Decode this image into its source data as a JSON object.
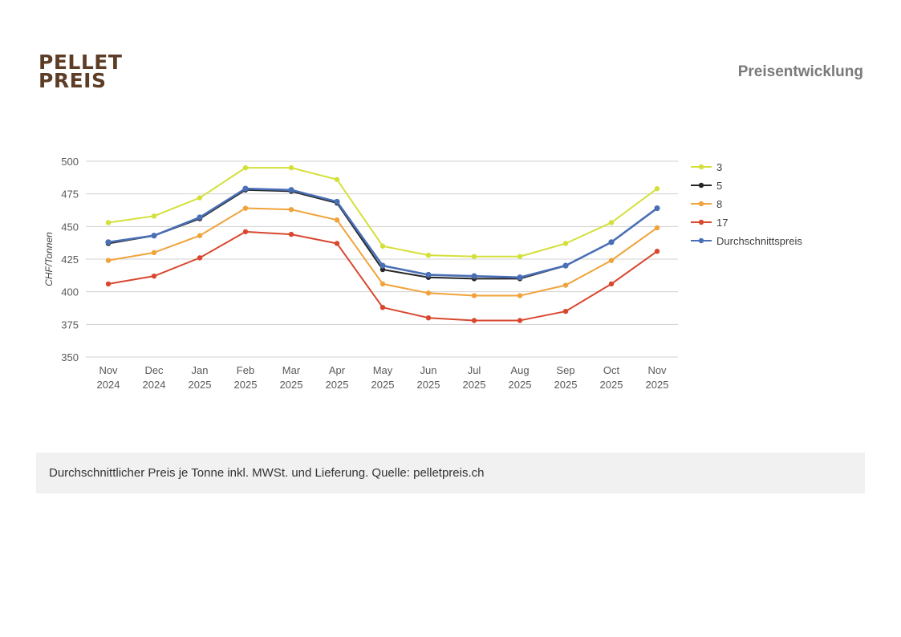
{
  "logo": {
    "line1": "PELLET",
    "line2": "PREIS"
  },
  "header": {
    "title": "Preisentwicklung"
  },
  "footer": {
    "note": "Durchschnittlicher Preis je Tonne inkl. MWSt. und Lieferung. Quelle: pelletpreis.ch"
  },
  "chart_data": {
    "type": "line",
    "title": "",
    "xlabel": "",
    "ylabel": "CHF/Tonnen",
    "ylim": [
      350,
      500
    ],
    "yticks": [
      350,
      375,
      400,
      425,
      450,
      475,
      500
    ],
    "grid": true,
    "legend_position": "right",
    "categories": [
      [
        "Nov",
        "2024"
      ],
      [
        "Dec",
        "2024"
      ],
      [
        "Jan",
        "2025"
      ],
      [
        "Feb",
        "2025"
      ],
      [
        "Mar",
        "2025"
      ],
      [
        "Apr",
        "2025"
      ],
      [
        "May",
        "2025"
      ],
      [
        "Jun",
        "2025"
      ],
      [
        "Jul",
        "2025"
      ],
      [
        "Aug",
        "2025"
      ],
      [
        "Sep",
        "2025"
      ],
      [
        "Oct",
        "2025"
      ],
      [
        "Nov",
        "2025"
      ]
    ],
    "series": [
      {
        "name": "3",
        "color": "#d4e03a",
        "values": [
          453,
          458,
          472,
          495,
          495,
          486,
          435,
          428,
          427,
          427,
          437,
          453,
          479
        ]
      },
      {
        "name": "5",
        "color": "#262626",
        "values": [
          437,
          443,
          456,
          478,
          477,
          468,
          417,
          411,
          410,
          410,
          420,
          438,
          464
        ]
      },
      {
        "name": "8",
        "color": "#f0a33a",
        "values": [
          424,
          430,
          443,
          464,
          463,
          455,
          406,
          399,
          397,
          397,
          405,
          424,
          449
        ]
      },
      {
        "name": "17",
        "color": "#d9472f",
        "values": [
          406,
          412,
          426,
          446,
          444,
          437,
          388,
          380,
          378,
          378,
          385,
          406,
          431
        ]
      },
      {
        "name": "Durchschnittspreis",
        "color": "#4a6fb5",
        "values": [
          438,
          443,
          457,
          479,
          478,
          469,
          420,
          413,
          412,
          411,
          420,
          438,
          464
        ]
      }
    ]
  }
}
